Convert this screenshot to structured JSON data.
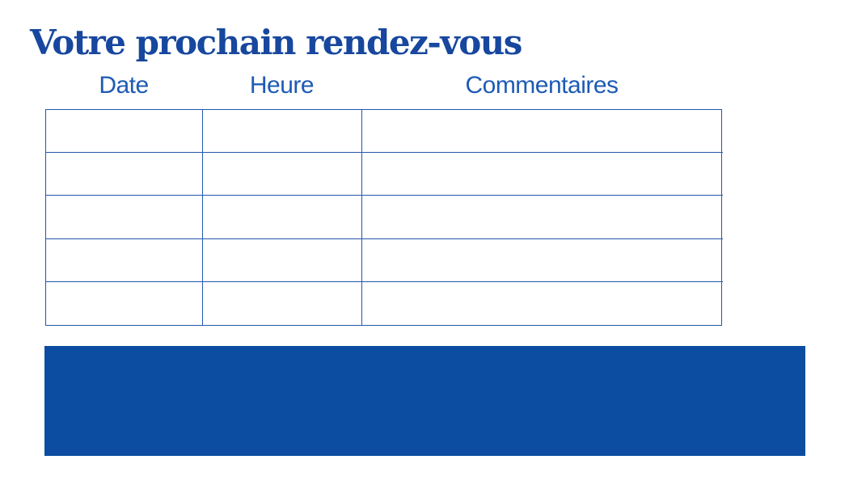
{
  "page": {
    "title": "Votre prochain rendez-vous"
  },
  "table": {
    "headers": [
      {
        "label": "Date"
      },
      {
        "label": "Heure"
      },
      {
        "label": "Commentaires"
      }
    ],
    "rows": [
      [
        "",
        "",
        ""
      ],
      [
        "",
        "",
        ""
      ],
      [
        "",
        "",
        ""
      ],
      [
        "",
        "",
        ""
      ],
      [
        "",
        "",
        ""
      ]
    ]
  },
  "colors": {
    "background": "#FFFFFF",
    "title_text": "#17479E",
    "header_text": "#1D5BB5",
    "table_border": "#2457AB",
    "banner_fill": "#0C4DA2"
  }
}
